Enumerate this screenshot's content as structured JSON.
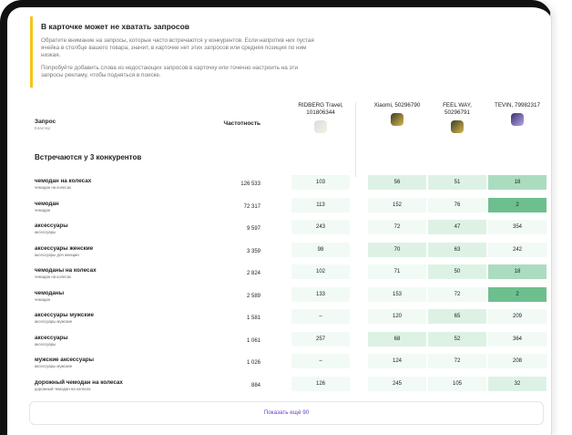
{
  "notice": {
    "title": "В карточке может не хватать запросов",
    "paragraphs": [
      "Обратите внимание на запросы, которые часто встречаются у конкурентов. Если напротив них пустая ячейка в столбце вашего товара, значит, в карточке нет этих запросов или средняя позиция по ним низкая.",
      "Попробуйте добавить слова из недостающих запросов в карточку или точечно настроить на эти запросы рекламу, чтобы подняться в поиске."
    ]
  },
  "table": {
    "header": {
      "query": "Запрос",
      "cluster": "Кластер",
      "frequency": "Частотность",
      "competitors": [
        "RIDBERG Travel, 101806344",
        "Xiaomi, 50296790",
        "FEEL WAY, 50296791",
        "TEVIN, 79982317"
      ]
    },
    "section": "Встречаются у 3 конкурентов",
    "rows": [
      {
        "query": "чемодан на колесах",
        "cluster": "чемодан на колесах",
        "frequency": "126 533",
        "values": [
          "103",
          "56",
          "51",
          "18"
        ]
      },
      {
        "query": "чемодан",
        "cluster": "чемодан",
        "frequency": "72 317",
        "values": [
          "113",
          "152",
          "76",
          "2"
        ]
      },
      {
        "query": "аксессуары",
        "cluster": "аксессуары",
        "frequency": "9 597",
        "values": [
          "243",
          "72",
          "47",
          "354"
        ]
      },
      {
        "query": "аксессуары женские",
        "cluster": "аксессуары для женщин",
        "frequency": "3 359",
        "values": [
          "98",
          "70",
          "63",
          "242"
        ]
      },
      {
        "query": "чемоданы на колесах",
        "cluster": "чемодан на колесах",
        "frequency": "2 824",
        "values": [
          "102",
          "71",
          "50",
          "18"
        ]
      },
      {
        "query": "чемоданы",
        "cluster": "чемодан",
        "frequency": "2 589",
        "values": [
          "133",
          "153",
          "72",
          "2"
        ]
      },
      {
        "query": "аксессуары мужские",
        "cluster": "аксессуары мужские",
        "frequency": "1 581",
        "values": [
          "–",
          "120",
          "65",
          "209"
        ]
      },
      {
        "query": "аксессуары",
        "cluster": "аксессуары",
        "frequency": "1 061",
        "values": [
          "257",
          "68",
          "52",
          "364"
        ]
      },
      {
        "query": "мужские аксессуары",
        "cluster": "аксессуары мужские",
        "frequency": "1 026",
        "values": [
          "–",
          "124",
          "72",
          "208"
        ]
      },
      {
        "query": "дорожный чемодан на колесах",
        "cluster": "дорожный чемодан на колесах",
        "frequency": "884",
        "values": [
          "126",
          "245",
          "105",
          "32"
        ]
      }
    ]
  },
  "button": "Показать ещё 90"
}
